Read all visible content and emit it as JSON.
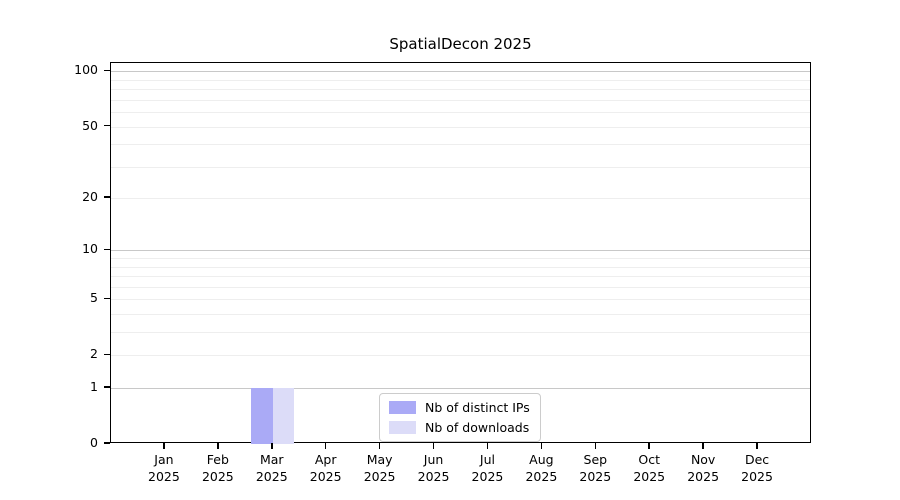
{
  "figure": {
    "background": "#ffffff"
  },
  "chart_data": {
    "type": "bar",
    "title": "SpatialDecon 2025",
    "xlabel": "",
    "ylabel": "",
    "yscale": "log1p",
    "ylim": [
      0,
      111
    ],
    "yticks": [
      0,
      1,
      2,
      5,
      10,
      20,
      50,
      100
    ],
    "categories": [
      {
        "month": "Jan",
        "year": "2025"
      },
      {
        "month": "Feb",
        "year": "2025"
      },
      {
        "month": "Mar",
        "year": "2025"
      },
      {
        "month": "Apr",
        "year": "2025"
      },
      {
        "month": "May",
        "year": "2025"
      },
      {
        "month": "Jun",
        "year": "2025"
      },
      {
        "month": "Jul",
        "year": "2025"
      },
      {
        "month": "Aug",
        "year": "2025"
      },
      {
        "month": "Sep",
        "year": "2025"
      },
      {
        "month": "Oct",
        "year": "2025"
      },
      {
        "month": "Nov",
        "year": "2025"
      },
      {
        "month": "Dec",
        "year": "2025"
      }
    ],
    "series": [
      {
        "name": "Nb of distinct IPs",
        "color": "#aaaaf6",
        "values": [
          0,
          0,
          1,
          0,
          0,
          0,
          0,
          0,
          0,
          0,
          0,
          0
        ]
      },
      {
        "name": "Nb of downloads",
        "color": "#dcdcf8",
        "values": [
          0,
          0,
          1,
          0,
          0,
          0,
          0,
          0,
          0,
          0,
          0,
          0
        ]
      }
    ],
    "grid": {
      "major_values": [
        1,
        10,
        100
      ],
      "minor_values": [
        2,
        3,
        4,
        5,
        6,
        7,
        8,
        9,
        20,
        30,
        40,
        50,
        60,
        70,
        80,
        90
      ],
      "major_color": "#c8c8c8",
      "minor_color": "#eeeeee"
    },
    "legend": {
      "position": "lower center",
      "border_color": "#cccccc",
      "background": "#ffffff"
    }
  }
}
